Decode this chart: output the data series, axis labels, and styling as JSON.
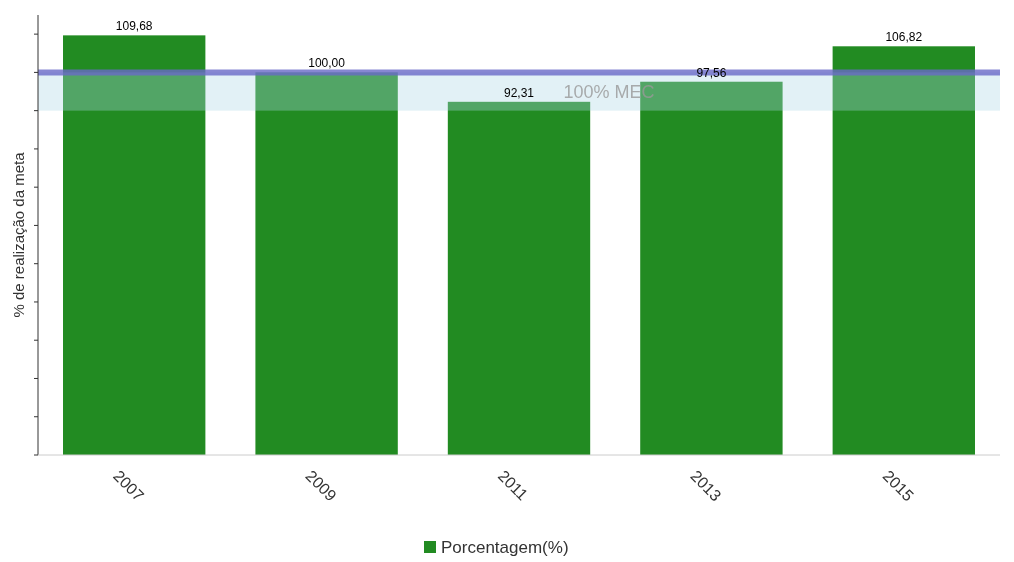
{
  "chart_data": {
    "type": "bar",
    "ylabel": "% de realização da meta",
    "categories": [
      "2007",
      "2009",
      "2011",
      "2013",
      "2015"
    ],
    "series": [
      {
        "name": "Porcentagem(%)",
        "color": "#228b22",
        "values": [
          109.68,
          100.0,
          92.31,
          97.56,
          106.82
        ],
        "value_labels": [
          "109,68",
          "100,00",
          "92,31",
          "97,56",
          "106,82"
        ]
      }
    ],
    "ylim": [
      0,
      115
    ],
    "yticks": [
      {
        "value": 0,
        "label": null
      },
      {
        "value": 10,
        "label": null
      },
      {
        "value": 20,
        "label": null
      },
      {
        "value": 30,
        "label": null
      },
      {
        "value": 40,
        "label": null
      },
      {
        "value": 50,
        "label": null
      },
      {
        "value": 60,
        "label": null
      },
      {
        "value": 70,
        "label": null
      },
      {
        "value": 80,
        "label": null
      },
      {
        "value": 90,
        "label": null
      },
      {
        "value": 100,
        "label": null
      },
      {
        "value": 110,
        "label": null
      }
    ],
    "tick_labels": "x",
    "ref_lines": [
      {
        "axis": "y",
        "value": 100,
        "color": "#6a6ac8"
      }
    ],
    "bands": [
      {
        "axis": "y",
        "from": 90,
        "to": 100,
        "label": "100% MEC",
        "color": "#add8e6"
      }
    ],
    "legend": "bottom"
  }
}
